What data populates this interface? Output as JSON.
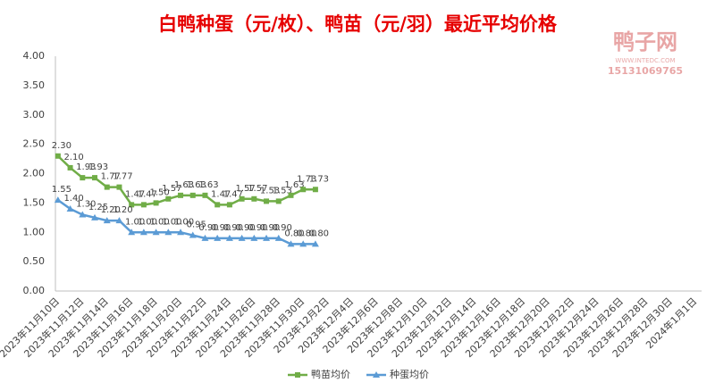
{
  "chart_data": {
    "type": "line",
    "title": "白鸭种蛋（元/枚）、鸭苗（元/羽）最近平均价格",
    "watermark": {
      "name": "鸭子网",
      "url": "WWW.INTEDC.COM",
      "phone": "15131069765"
    },
    "categories": [
      "2023年11月10日",
      null,
      "2023年11月12日",
      null,
      "2023年11月14日",
      null,
      "2023年11月16日",
      null,
      "2023年11月18日",
      null,
      "2023年11月20日",
      null,
      "2023年11月22日",
      null,
      "2023年11月24日",
      null,
      "2023年11月26日",
      null,
      "2023年11月28日",
      null,
      "2023年11月30日",
      null,
      "2023年12月2日",
      null,
      "2023年12月4日",
      null,
      "2023年12月6日",
      null,
      "2023年12月8日",
      null,
      "2023年12月10日",
      null,
      "2023年12月12日",
      null,
      "2023年12月14日",
      null,
      "2023年12月16日",
      null,
      "2023年12月18日",
      null,
      "2023年12月20日",
      null,
      "2023年12月22日",
      null,
      "2023年12月24日",
      null,
      "2023年12月26日",
      null,
      "2023年12月28日",
      null,
      "2023年12月30日",
      null,
      "2024年1月1日"
    ],
    "series": [
      {
        "name": "鸭苗均价",
        "color": "#70ad47",
        "marker": "square",
        "values": [
          2.3,
          2.1,
          1.93,
          1.93,
          1.77,
          1.77,
          1.47,
          1.47,
          1.5,
          1.57,
          1.63,
          1.63,
          1.63,
          1.47,
          1.47,
          1.57,
          1.57,
          1.53,
          1.53,
          1.63,
          1.73,
          1.73,
          null,
          null,
          null,
          null,
          null,
          null,
          null,
          null,
          null,
          null,
          null,
          null,
          null,
          null,
          null,
          null,
          null,
          null,
          null,
          null,
          null,
          null,
          null,
          null,
          null,
          null,
          null,
          null,
          null,
          null,
          null
        ],
        "value_labels": [
          "2.30",
          "2.10",
          "1.93",
          "1.93",
          "1.77",
          "1.77",
          "1.47",
          "1.47",
          "1.50",
          "1.57",
          "1.63",
          "1.63",
          "1.63",
          "1.47",
          "1.47",
          "1.57",
          "1.57",
          "1.53",
          "1.53",
          "1.63",
          "1.73",
          "1.73",
          null,
          null,
          null,
          null,
          null,
          null,
          null,
          null,
          null,
          null,
          null,
          null,
          null,
          null,
          null,
          null,
          null,
          null,
          null,
          null,
          null,
          null,
          null,
          null,
          null,
          null,
          null,
          null,
          null,
          null,
          null
        ]
      },
      {
        "name": "种蛋均价",
        "color": "#5b9bd5",
        "marker": "triangle",
        "values": [
          1.55,
          1.4,
          1.3,
          1.25,
          1.2,
          1.2,
          1,
          1,
          1,
          1,
          1,
          0.95,
          0.9,
          0.9,
          0.9,
          0.9,
          0.9,
          0.9,
          0.9,
          0.8,
          0.8,
          0.8,
          null,
          null,
          null,
          null,
          null,
          null,
          null,
          null,
          null,
          null,
          null,
          null,
          null,
          null,
          null,
          null,
          null,
          null,
          null,
          null,
          null,
          null,
          null,
          null,
          null,
          null,
          null,
          null,
          null,
          null,
          null
        ],
        "value_labels": [
          "1.55",
          "1.40",
          "1.30",
          "1.25",
          "1.20",
          "1.20",
          "1.00",
          "1.00",
          "1.00",
          "1.00",
          "1.00",
          "0.95",
          "0.90",
          "0.90",
          "0.90",
          "0.90",
          "0.90",
          "0.90",
          "0.90",
          "0.80",
          "0.80",
          "0.80",
          null,
          null,
          null,
          null,
          null,
          null,
          null,
          null,
          null,
          null,
          null,
          null,
          null,
          null,
          null,
          null,
          null,
          null,
          null,
          null,
          null,
          null,
          null,
          null,
          null,
          null,
          null,
          null,
          null,
          null,
          null
        ]
      }
    ],
    "ylim": [
      0,
      4
    ],
    "yticks": [
      {
        "value": 0,
        "label": "0.00"
      },
      {
        "value": 0.5,
        "label": "0.50"
      },
      {
        "value": 1,
        "label": "1.00"
      },
      {
        "value": 1.5,
        "label": "1.50"
      },
      {
        "value": 2,
        "label": "2.00"
      },
      {
        "value": 2.5,
        "label": "2.50"
      },
      {
        "value": 3,
        "label": "3.00"
      },
      {
        "value": 3.5,
        "label": "3.50"
      },
      {
        "value": 4,
        "label": "4.00"
      }
    ],
    "grid": false,
    "legend": "bottom"
  }
}
